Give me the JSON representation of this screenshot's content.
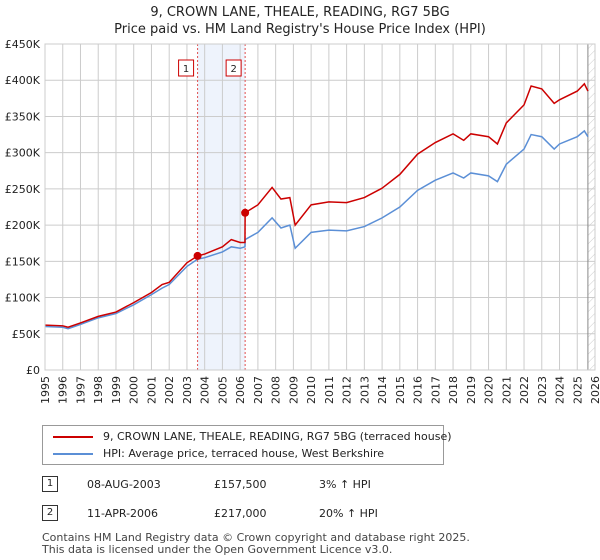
{
  "chart_data": {
    "type": "line",
    "title": "9, CROWN LANE, THEALE, READING, RG7 5BG",
    "subtitle": "Price paid vs. HM Land Registry's House Price Index (HPI)",
    "xlim": [
      1995,
      2026
    ],
    "ylim": [
      0,
      450000
    ],
    "x_ticks": [
      "1995",
      "1996",
      "1997",
      "1998",
      "1999",
      "2000",
      "2001",
      "2002",
      "2003",
      "2004",
      "2005",
      "2006",
      "2007",
      "2008",
      "2009",
      "2010",
      "2011",
      "2012",
      "2013",
      "2014",
      "2015",
      "2016",
      "2017",
      "2018",
      "2019",
      "2020",
      "2021",
      "2022",
      "2023",
      "2024",
      "2025",
      "2026"
    ],
    "y_ticks": [
      {
        "v": 0,
        "l": "£0"
      },
      {
        "v": 50000,
        "l": "£50K"
      },
      {
        "v": 100000,
        "l": "£100K"
      },
      {
        "v": 150000,
        "l": "£150K"
      },
      {
        "v": 200000,
        "l": "£200K"
      },
      {
        "v": 250000,
        "l": "£250K"
      },
      {
        "v": 300000,
        "l": "£300K"
      },
      {
        "v": 350000,
        "l": "£350K"
      },
      {
        "v": 400000,
        "l": "£400K"
      },
      {
        "v": 450000,
        "l": "£450K"
      }
    ],
    "grid": true,
    "series": [
      {
        "name": "9, CROWN LANE, THEALE, READING, RG7 5BG (terraced house)",
        "color": "#cc0000",
        "x": [
          1995,
          1996,
          1996.3,
          1997,
          1998,
          1999,
          2000,
          2001,
          2001.6,
          2002,
          2003,
          2003.6,
          2004,
          2005,
          2005.5,
          2006,
          2006.27,
          2006.28,
          2007,
          2007.8,
          2008.3,
          2008.8,
          2009.1,
          2010,
          2011,
          2012,
          2013,
          2014,
          2015,
          2016,
          2017,
          2018,
          2018.6,
          2019,
          2020,
          2020.5,
          2021,
          2022,
          2022.4,
          2023,
          2023.7,
          2024,
          2025,
          2025.4,
          2025.6
        ],
        "y": [
          62000,
          61000,
          59000,
          65000,
          74000,
          80000,
          93000,
          107000,
          118000,
          121000,
          148000,
          157500,
          160000,
          170000,
          180000,
          176000,
          176000,
          217000,
          228000,
          252000,
          236000,
          238000,
          200000,
          228000,
          232000,
          231000,
          238000,
          251000,
          270000,
          298000,
          314000,
          326000,
          317000,
          326000,
          322000,
          312000,
          341000,
          366000,
          392000,
          388000,
          368000,
          373000,
          385000,
          395000,
          385000
        ]
      },
      {
        "name": "HPI: Average price, terraced house, West Berkshire",
        "color": "#5b8fd6",
        "x": [
          1995,
          1996,
          1996.3,
          1997,
          1998,
          1999,
          2000,
          2001,
          2001.6,
          2002,
          2003,
          2003.6,
          2004,
          2005,
          2005.5,
          2006,
          2006.27,
          2006.28,
          2007,
          2007.8,
          2008.3,
          2008.8,
          2009.1,
          2010,
          2011,
          2012,
          2013,
          2014,
          2015,
          2016,
          2017,
          2018,
          2018.6,
          2019,
          2020,
          2020.5,
          2021,
          2022,
          2022.4,
          2023,
          2023.7,
          2024,
          2025,
          2025.4,
          2025.6
        ],
        "y": [
          60000,
          59000,
          57000,
          63000,
          72000,
          78000,
          90000,
          104000,
          113000,
          118000,
          143000,
          153000,
          155000,
          163000,
          170000,
          168000,
          170000,
          180000,
          190000,
          210000,
          196000,
          200000,
          168000,
          190000,
          193000,
          192000,
          198000,
          210000,
          225000,
          248000,
          262000,
          272000,
          265000,
          272000,
          268000,
          260000,
          284000,
          305000,
          325000,
          322000,
          305000,
          312000,
          322000,
          330000,
          322000
        ]
      }
    ],
    "sales": [
      {
        "label": "1",
        "x": 2003.6,
        "y": 157500
      },
      {
        "label": "2",
        "x": 2006.28,
        "y": 217000
      }
    ],
    "shaded_range": [
      2003.6,
      2006.28
    ],
    "hatched_from": 2025.6
  },
  "table": [
    {
      "num": "1",
      "date": "08-AUG-2003",
      "price": "£157,500",
      "hpi": "3% ↑ HPI"
    },
    {
      "num": "2",
      "date": "11-APR-2006",
      "price": "£217,000",
      "hpi": "20% ↑ HPI"
    }
  ],
  "footer": [
    "Contains HM Land Registry data © Crown copyright and database right 2025.",
    "This data is licensed under the Open Government Licence v3.0."
  ]
}
